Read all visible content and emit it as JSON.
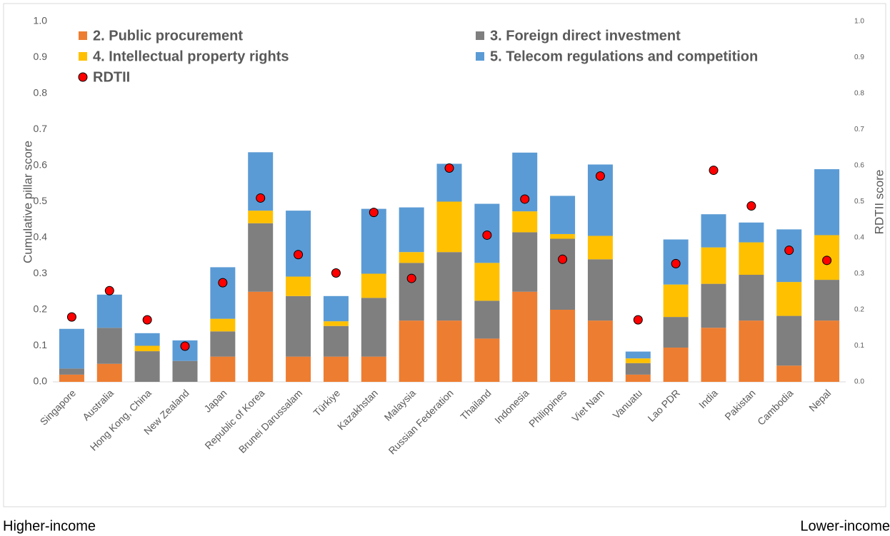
{
  "chart_data": {
    "type": "bar",
    "ylabel": "Cumulative pillar score",
    "y2label": "RDTII score",
    "annotations": [
      "Higher-income",
      "Lower-income"
    ],
    "categories": [
      "Singapore",
      "Australia",
      "Hong Kong, China",
      "New Zealand",
      "Japan",
      "Republic of Korea",
      "Brunei Darussalam",
      "Türkiye",
      "Kazakhstan",
      "Malaysia",
      "Russian Federation",
      "Thailand",
      "Indonesia",
      "Philippines",
      "Viet Nam",
      "Vanuatu",
      "Lao PDR",
      "India",
      "Pakistan",
      "Cambodia",
      "Nepal"
    ],
    "series": [
      {
        "name": "2. Public procurement",
        "color": "#ED7D31",
        "values": [
          0.02,
          0.05,
          0,
          0,
          0.07,
          0.25,
          0.07,
          0.07,
          0.07,
          0.17,
          0.17,
          0.12,
          0.25,
          0.2,
          0.17,
          0.02,
          0.095,
          0.15,
          0.17,
          0.045,
          0.17
        ]
      },
      {
        "name": "3. Foreign direct investment",
        "color": "#7F7F7F",
        "values": [
          0.017,
          0.1,
          0.085,
          0.058,
          0.07,
          0.19,
          0.168,
          0.085,
          0.163,
          0.16,
          0.19,
          0.105,
          0.165,
          0.197,
          0.17,
          0.032,
          0.085,
          0.122,
          0.127,
          0.138,
          0.113
        ]
      },
      {
        "name": "4. Intellectual property rights",
        "color": "#FFC000",
        "values": [
          0,
          0,
          0.015,
          0,
          0.035,
          0.035,
          0.054,
          0.013,
          0.067,
          0.03,
          0.14,
          0.105,
          0.058,
          0.013,
          0.065,
          0.013,
          0.09,
          0.101,
          0.09,
          0.094,
          0.124
        ]
      },
      {
        "name": "5. Telecom regulations and competition",
        "color": "#5B9BD5",
        "values": [
          0.11,
          0.092,
          0.035,
          0.057,
          0.143,
          0.162,
          0.183,
          0.07,
          0.18,
          0.124,
          0.105,
          0.164,
          0.163,
          0.106,
          0.198,
          0.019,
          0.125,
          0.092,
          0.055,
          0.146,
          0.183
        ]
      },
      {
        "name": "RDTII",
        "color": "#FF0000",
        "axis": "y2",
        "values": [
          0.18,
          0.253,
          0.172,
          0.099,
          0.275,
          0.51,
          0.353,
          0.302,
          0.47,
          0.287,
          0.593,
          0.407,
          0.507,
          0.34,
          0.571,
          0.172,
          0.328,
          0.587,
          0.488,
          0.365,
          0.337
        ]
      }
    ],
    "ylim": [
      0,
      1
    ],
    "yticks": [
      {
        "value": 0,
        "label": "0.0"
      },
      0.1,
      0.2,
      0.3,
      0.4,
      0.5,
      0.6,
      0.7,
      0.8,
      0.9,
      {
        "value": 1,
        "label": "1.0"
      }
    ],
    "y2lim": [
      0,
      1
    ],
    "y2ticks": [
      {
        "value": 0,
        "label": "0.0"
      },
      0.1,
      0.2,
      0.3,
      0.4,
      0.5,
      0.6,
      0.7,
      0.8,
      0.9,
      {
        "value": 1,
        "label": "1.0"
      }
    ],
    "stacked": true,
    "legend": "top"
  }
}
